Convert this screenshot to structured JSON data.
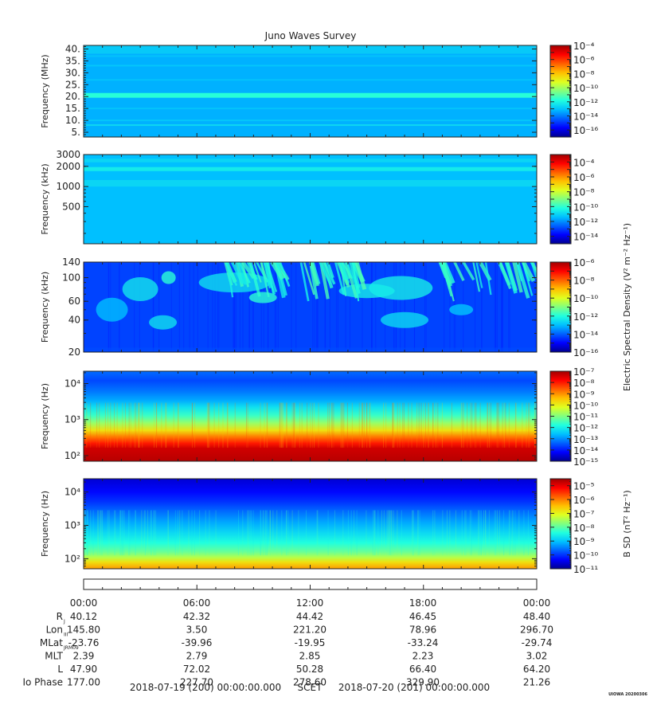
{
  "title": "Juno Waves Survey",
  "stamp": "UIOWA 20200306",
  "colors": {
    "jet": [
      "#00008f",
      "#0000ff",
      "#0060ff",
      "#00c0ff",
      "#20ffdf",
      "#80ff80",
      "#dfff20",
      "#ffc000",
      "#ff6000",
      "#ff0000",
      "#a00000"
    ]
  },
  "chart_data": [
    {
      "type": "heatmap",
      "ylabel": "Frequency (MHz)",
      "yscale": "linear",
      "ylim": [
        3.0,
        41.5
      ],
      "yticks": [
        5,
        10,
        15,
        20,
        25,
        30,
        35,
        40
      ],
      "ytick_labels": [
        "5.",
        "10.",
        "15.",
        "20.",
        "25.",
        "30.",
        "35.",
        "40."
      ],
      "features": [
        "uniform background near 1e-13",
        "persistent band near 21 MHz near 1e-12",
        "weak line near 8 MHz"
      ],
      "colorbar": {
        "scale": "log",
        "min_exp": -17,
        "max_exp": -4,
        "tick_exps": [
          -4,
          -6,
          -8,
          -10,
          -12,
          -14,
          -16
        ],
        "label": ""
      }
    },
    {
      "type": "heatmap",
      "ylabel": "Frequency (kHz)",
      "yscale": "log",
      "ylim": [
        140,
        3000
      ],
      "yticks": [
        500,
        1000,
        2000,
        3000
      ],
      "ytick_labels": [
        "500",
        "1000",
        "2000",
        "3000"
      ],
      "features": [
        "uniform background near 1e-11",
        "bands near 1800 kHz and 1100 kHz"
      ],
      "colorbar": {
        "scale": "log",
        "min_exp": -15,
        "max_exp": -3,
        "tick_exps": [
          -4,
          -6,
          -8,
          -10,
          -12,
          -14
        ],
        "label": ""
      }
    },
    {
      "type": "heatmap",
      "ylabel": "Frequency (kHz)",
      "yscale": "log",
      "ylim": [
        20,
        140
      ],
      "yticks": [
        20,
        40,
        60,
        100,
        140
      ],
      "ytick_labels": [
        "20",
        "40",
        "60",
        "100",
        "140"
      ],
      "features": [
        "background near 1e-14",
        "diffuse blobs and drifting emission streaks near 1e-12"
      ],
      "colorbar": {
        "scale": "log",
        "min_exp": -16,
        "max_exp": -6,
        "tick_exps": [
          -6,
          -8,
          -10,
          -12,
          -14,
          -16
        ],
        "label": "Electric Spectral Density (V² m⁻² Hz⁻¹)"
      }
    },
    {
      "type": "heatmap",
      "ylabel": "Frequency (Hz)",
      "yscale": "log",
      "ylim": [
        70,
        22000
      ],
      "yticks": [
        100,
        1000,
        10000
      ],
      "ytick_labels": [
        "10²",
        "10³",
        "10⁴"
      ],
      "features": [
        "intensity decreasing with frequency",
        "about 1e-7 below 200 Hz",
        "about 1e-13 above 5 kHz"
      ],
      "colorbar": {
        "scale": "log",
        "min_exp": -15,
        "max_exp": -7,
        "tick_exps": [
          -7,
          -8,
          -9,
          -10,
          -11,
          -12,
          -13,
          -14,
          -15
        ],
        "label": ""
      }
    },
    {
      "type": "heatmap",
      "ylabel": "Frequency (Hz)",
      "yscale": "log",
      "ylim": [
        50,
        25000
      ],
      "yticks": [
        100,
        1000,
        10000
      ],
      "ytick_labels": [
        "10²",
        "10³",
        "10⁴"
      ],
      "features": [
        "intensity decreasing with frequency",
        "about 1e-6 below 80 Hz",
        "about 1e-10 above 5 kHz"
      ],
      "colorbar": {
        "scale": "log",
        "min_exp": -11,
        "max_exp": -4.5,
        "tick_exps": [
          -5,
          -6,
          -7,
          -8,
          -9,
          -10,
          -11
        ],
        "label": "B SD (nT² Hz⁻¹)"
      }
    }
  ],
  "ephemeris": {
    "times": [
      "00:00",
      "06:00",
      "12:00",
      "18:00",
      "00:00"
    ],
    "rows": [
      {
        "label": "R",
        "sub": "J",
        "values": [
          "40.12",
          "42.32",
          "44.42",
          "46.45",
          "48.40"
        ]
      },
      {
        "label": "Lon",
        "sub": "III",
        "values": [
          "145.80",
          "3.50",
          "221.20",
          "78.96",
          "296.70"
        ]
      },
      {
        "label": "MLat",
        "sub": "JRM09",
        "values": [
          "-23.76",
          "-39.96",
          "-19.95",
          "-33.24",
          "-29.74"
        ]
      },
      {
        "label": "MLT",
        "sub": "",
        "values": [
          "2.39",
          "2.79",
          "2.85",
          "2.23",
          "3.02"
        ]
      },
      {
        "label": "L",
        "sub": "",
        "values": [
          "47.90",
          "72.02",
          "50.28",
          "66.40",
          "64.20"
        ]
      },
      {
        "label": "Io Phase",
        "sub": "",
        "values": [
          "177.00",
          "227.70",
          "278.60",
          "329.90",
          "21.26"
        ]
      }
    ]
  },
  "footer": {
    "start": "2018-07-19 (200) 00:00:00.000",
    "scet": "SCET",
    "end": "2018-07-20 (201) 00:00:00.000"
  }
}
